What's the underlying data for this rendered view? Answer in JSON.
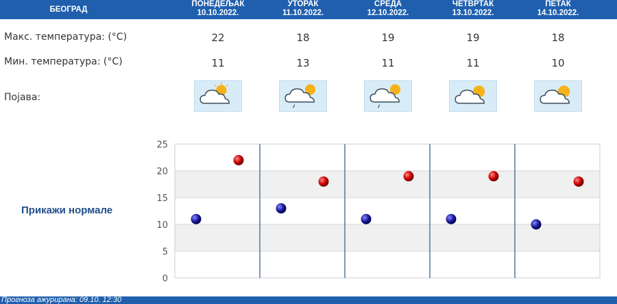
{
  "header": {
    "city": "БЕОГРАД",
    "days": [
      {
        "name": "ПОНЕДЕЉАК",
        "date": "10.10.2022."
      },
      {
        "name": "УТОРАК",
        "date": "11.10.2022."
      },
      {
        "name": "СРЕДА",
        "date": "12.10.2022."
      },
      {
        "name": "ЧЕТВРТАК",
        "date": "13.10.2022."
      },
      {
        "name": "ПЕТАК",
        "date": "14.10.2022."
      }
    ]
  },
  "rows": {
    "max_label": "Макс. температура: (°C)",
    "min_label": "Мин. температура: (°C)",
    "phenomenon_label": "Појава:"
  },
  "max_temps": [
    "22",
    "18",
    "19",
    "19",
    "18"
  ],
  "min_temps": [
    "11",
    "13",
    "11",
    "11",
    "10"
  ],
  "icons": [
    "partly-cloudy-icon",
    "partly-cloudy-light-rain-icon",
    "partly-cloudy-light-rain-icon",
    "partly-cloudy-icon",
    "partly-cloudy-icon"
  ],
  "normals_link": "Прикажи нормале",
  "chart_data": {
    "type": "scatter",
    "categories": [
      "ПОНЕДЕЉАК",
      "УТОРАК",
      "СРЕДА",
      "ЧЕТВРТАК",
      "ПЕТАК"
    ],
    "series": [
      {
        "values": [
          22,
          18,
          19,
          19,
          18
        ],
        "color": "#cc0000"
      },
      {
        "values": [
          11,
          13,
          11,
          11,
          10
        ],
        "color": "#1a1aa0"
      }
    ],
    "yticks": [
      "25",
      "20",
      "15",
      "10",
      "5",
      "0"
    ],
    "ylim": [
      0,
      25
    ],
    "grid": true,
    "band_colors": [
      "#ffffff",
      "#f0f0f0"
    ],
    "separator_color": "#4a6c94"
  },
  "footer": "Прогноза ажурирана: 09.10. 12:30"
}
